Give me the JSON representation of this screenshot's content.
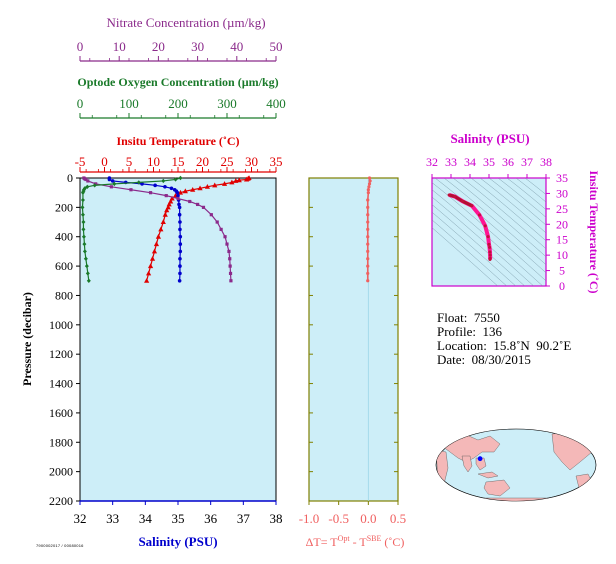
{
  "chart_data": [
    {
      "type": "line",
      "panel": "main-profile",
      "axes": {
        "nitrate": {
          "label": "Nitrate Concentration (µm/kg)",
          "ticks": [
            "0",
            "10",
            "20",
            "30",
            "40",
            "50"
          ],
          "range": [
            0,
            50
          ],
          "color": "#8b2a8b"
        },
        "oxygen": {
          "label": "Optode Oxygen Concentration (µm/kg)",
          "ticks": [
            "0",
            "100",
            "200",
            "300",
            "400"
          ],
          "range": [
            0,
            400
          ],
          "color": "#1a7a2a"
        },
        "temperature": {
          "label": "Insitu Temperature (˚C)",
          "ticks": [
            "-5",
            "0",
            "5",
            "10",
            "15",
            "20",
            "25",
            "30",
            "35"
          ],
          "range": [
            -5,
            35
          ],
          "color": "#e00000"
        },
        "salinity": {
          "label": "Salinity (PSU)",
          "ticks": [
            "32",
            "33",
            "34",
            "35",
            "36",
            "37",
            "38"
          ],
          "range": [
            32,
            38
          ],
          "color": "#0000cc"
        },
        "pressure": {
          "label": "Pressure (decibar)",
          "ticks": [
            "0",
            "200",
            "400",
            "600",
            "800",
            "1000",
            "1200",
            "1400",
            "1600",
            "1800",
            "2000",
            "2200"
          ],
          "range": [
            0,
            2200
          ]
        }
      },
      "series": [
        {
          "key": "temperature",
          "color": "#e00000",
          "marker": "triangle",
          "points": [
            [
              0,
              29.5
            ],
            [
              5,
              29.3
            ],
            [
              10,
              29.0
            ],
            [
              15,
              27.5
            ],
            [
              20,
              26.8
            ],
            [
              30,
              26.0
            ],
            [
              40,
              24.5
            ],
            [
              50,
              22.5
            ],
            [
              60,
              21.0
            ],
            [
              70,
              19.5
            ],
            [
              80,
              18.0
            ],
            [
              90,
              16.5
            ],
            [
              100,
              15.5
            ],
            [
              120,
              14.5
            ],
            [
              140,
              13.8
            ],
            [
              160,
              13.5
            ],
            [
              180,
              13.2
            ],
            [
              200,
              13.0
            ],
            [
              220,
              12.7
            ],
            [
              250,
              12.4
            ],
            [
              300,
              12.0
            ],
            [
              350,
              11.5
            ],
            [
              400,
              11.0
            ],
            [
              450,
              10.6
            ],
            [
              500,
              10.2
            ],
            [
              550,
              9.8
            ],
            [
              600,
              9.4
            ],
            [
              650,
              9.0
            ],
            [
              700,
              8.6
            ]
          ]
        },
        {
          "key": "salinity",
          "color": "#0000cc",
          "marker": "circle",
          "points": [
            [
              0,
              32.9
            ],
            [
              10,
              32.9
            ],
            [
              20,
              33.0
            ],
            [
              30,
              33.4
            ],
            [
              40,
              33.9
            ],
            [
              50,
              34.3
            ],
            [
              60,
              34.6
            ],
            [
              70,
              34.8
            ],
            [
              80,
              34.9
            ],
            [
              90,
              34.95
            ],
            [
              100,
              34.98
            ],
            [
              120,
              35.0
            ],
            [
              150,
              35.02
            ],
            [
              180,
              35.03
            ],
            [
              200,
              35.05
            ],
            [
              250,
              35.05
            ],
            [
              300,
              35.06
            ],
            [
              350,
              35.06
            ],
            [
              400,
              35.07
            ],
            [
              450,
              35.07
            ],
            [
              500,
              35.07
            ],
            [
              550,
              35.06
            ],
            [
              600,
              35.06
            ],
            [
              650,
              35.06
            ],
            [
              700,
              35.05
            ]
          ]
        },
        {
          "key": "nitrate",
          "color": "#8b2a8b",
          "marker": "square",
          "points": [
            [
              0,
              1.0
            ],
            [
              5,
              1.2
            ],
            [
              10,
              1.5
            ],
            [
              20,
              2.0
            ],
            [
              40,
              4.0
            ],
            [
              60,
              8.0
            ],
            [
              80,
              13.0
            ],
            [
              100,
              18.0
            ],
            [
              120,
              22.0
            ],
            [
              140,
              25.0
            ],
            [
              160,
              28.0
            ],
            [
              180,
              30.0
            ],
            [
              200,
              31.5
            ],
            [
              250,
              33.5
            ],
            [
              300,
              35.0
            ],
            [
              350,
              36.0
            ],
            [
              400,
              37.0
            ],
            [
              450,
              37.5
            ],
            [
              500,
              38.0
            ],
            [
              550,
              38.2
            ],
            [
              600,
              38.3
            ],
            [
              650,
              38.4
            ],
            [
              700,
              38.5
            ]
          ]
        },
        {
          "key": "oxygen",
          "color": "#1a7a2a",
          "marker": "diamond",
          "points": [
            [
              0,
              205
            ],
            [
              10,
              195
            ],
            [
              20,
              170
            ],
            [
              30,
              120
            ],
            [
              40,
              70
            ],
            [
              50,
              30
            ],
            [
              60,
              15
            ],
            [
              70,
              10
            ],
            [
              80,
              8
            ],
            [
              90,
              7
            ],
            [
              100,
              6
            ],
            [
              150,
              6
            ],
            [
              200,
              5
            ],
            [
              250,
              6
            ],
            [
              300,
              7
            ],
            [
              350,
              7
            ],
            [
              400,
              8
            ],
            [
              450,
              9
            ],
            [
              500,
              10
            ],
            [
              550,
              12
            ],
            [
              600,
              14
            ],
            [
              650,
              16
            ],
            [
              700,
              18
            ]
          ]
        }
      ],
      "bottom_left_note": "7900002017 / 00080016"
    },
    {
      "type": "scatter",
      "panel": "delta-t",
      "xlabel_parts": {
        "prefix": "ΔT= T",
        "sup1": "Opt",
        "mid": " - T",
        "sup2": "SBE",
        "suffix": " (˚C)"
      },
      "xticks": [
        "-1.0",
        "-0.5",
        "0.0",
        "0.5"
      ],
      "xlim": [
        -1.0,
        0.5
      ],
      "color": "#f06060",
      "points": [
        [
          0,
          0.02
        ],
        [
          20,
          0.03
        ],
        [
          40,
          0.02
        ],
        [
          60,
          0.01
        ],
        [
          80,
          0.0
        ],
        [
          100,
          0.0
        ],
        [
          150,
          -0.01
        ],
        [
          200,
          -0.01
        ],
        [
          250,
          -0.01
        ],
        [
          300,
          -0.01
        ],
        [
          350,
          -0.01
        ],
        [
          400,
          -0.01
        ],
        [
          450,
          -0.01
        ],
        [
          500,
          -0.01
        ],
        [
          550,
          -0.01
        ],
        [
          600,
          -0.01
        ],
        [
          650,
          -0.01
        ],
        [
          700,
          -0.01
        ]
      ]
    },
    {
      "type": "line",
      "panel": "ts-diagram",
      "xlabel": "Salinity (PSU)",
      "ylabel": "Insitu Temperature (˚C)",
      "xticks": [
        "32",
        "33",
        "34",
        "35",
        "36",
        "37",
        "38"
      ],
      "yticks": [
        "0",
        "5",
        "10",
        "15",
        "20",
        "25",
        "30",
        "35"
      ],
      "xlim": [
        32,
        38
      ],
      "ylim": [
        0,
        35
      ],
      "color": "#ff1493",
      "points": [
        [
          32.9,
          29.5
        ],
        [
          33.2,
          29.0
        ],
        [
          33.6,
          27.5
        ],
        [
          34.1,
          26.0
        ],
        [
          34.5,
          23.0
        ],
        [
          34.8,
          19.5
        ],
        [
          34.95,
          16.0
        ],
        [
          35.0,
          13.5
        ],
        [
          35.03,
          12.5
        ],
        [
          35.05,
          11.0
        ],
        [
          35.06,
          10.0
        ],
        [
          35.06,
          9.0
        ],
        [
          35.05,
          8.6
        ]
      ]
    }
  ],
  "info": {
    "float": "Float:  7550",
    "profile": "Profile:  136",
    "location": "Location:  15.8˚N  90.2˚E",
    "date": "Date:  08/30/2015"
  },
  "map": {
    "land_color": "#f4b8b8",
    "ocean_color": "#cdeef8",
    "marker_color": "#0000ff",
    "marker_lat": 15.8,
    "marker_lon": 90.2
  }
}
